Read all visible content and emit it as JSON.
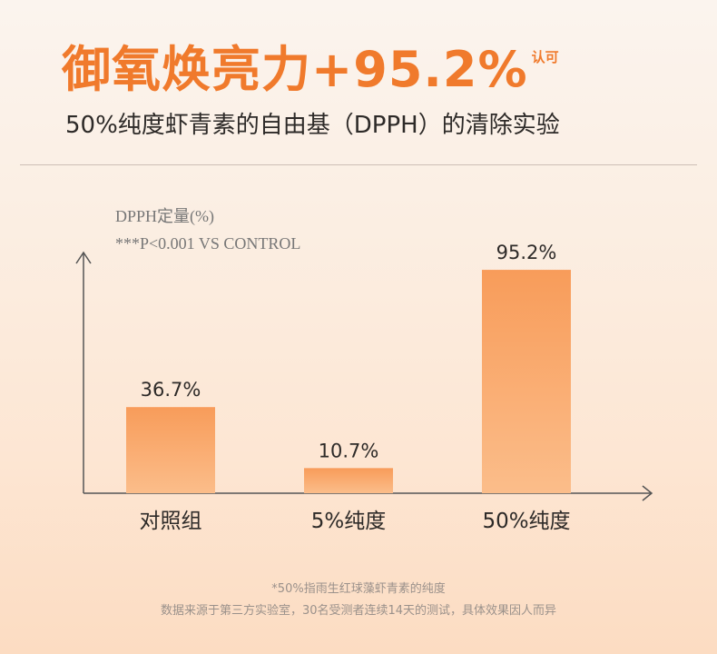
{
  "headline": {
    "main": "御氧焕亮力+95.2%",
    "sup": "认可"
  },
  "subtitle": "50%纯度虾青素的自由基（DPPH）的清除实验",
  "chart_data": {
    "type": "bar",
    "title": "",
    "ylabel": "DPPH定量(%)",
    "note": "***P<0.001 VS CONTROL",
    "categories": [
      "对照组",
      "5%纯度",
      "50%纯度"
    ],
    "values": [
      36.7,
      10.7,
      95.2
    ],
    "value_labels": [
      "36.7%",
      "10.7%",
      "95.2%"
    ],
    "ylim": [
      0,
      120
    ],
    "bar_color": "#f8a264",
    "grid": false
  },
  "footnotes": {
    "line1": "*50%指雨生红球藻虾青素的纯度",
    "line2": "数据来源于第三方实验室，30名受测者连续14天的测试，具体效果因人而异"
  }
}
